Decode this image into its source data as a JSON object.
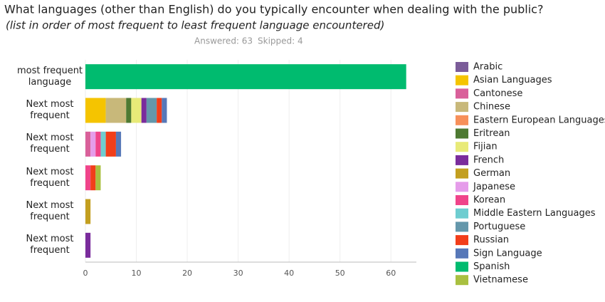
{
  "chart_data": {
    "type": "stacked_bar_horizontal",
    "title": "What languages (other than English) do you typically encounter when dealing with the public?",
    "subtitle": "(list in order of most frequent to least frequent language encountered)",
    "answered": "Answered: 63",
    "skipped": "Skipped: 4",
    "categories": [
      "most frequent language",
      "Next most frequent",
      "Next most frequent",
      "Next most frequent",
      "Next most frequent",
      "Next most frequent"
    ],
    "series": [
      {
        "name": "Arabic",
        "color": "#7b5c99",
        "values": [
          0,
          0,
          0,
          0,
          0,
          0
        ]
      },
      {
        "name": "Asian Languages",
        "color": "#f5c400",
        "values": [
          0,
          4,
          0,
          0,
          0,
          0
        ]
      },
      {
        "name": "Cantonese",
        "color": "#d9609a",
        "values": [
          0,
          0,
          1,
          0,
          0,
          0
        ]
      },
      {
        "name": "Chinese",
        "color": "#c8b87a",
        "values": [
          0,
          4,
          0,
          0,
          0,
          0
        ]
      },
      {
        "name": "Eastern European Languages",
        "color": "#f7905a",
        "values": [
          0,
          0,
          0,
          0,
          0,
          0
        ]
      },
      {
        "name": "Eritrean",
        "color": "#4e7a32",
        "values": [
          0,
          1,
          0,
          0,
          0,
          0
        ]
      },
      {
        "name": "Fijian",
        "color": "#e8ea78",
        "values": [
          0,
          2,
          0,
          0,
          0,
          0
        ]
      },
      {
        "name": "French",
        "color": "#7a2c9c",
        "values": [
          0,
          1,
          0,
          0,
          0,
          1
        ]
      },
      {
        "name": "German",
        "color": "#c39f20",
        "values": [
          0,
          0,
          0,
          0,
          1,
          0
        ]
      },
      {
        "name": "Japanese",
        "color": "#e59cea",
        "values": [
          0,
          0,
          1,
          0,
          0,
          0
        ]
      },
      {
        "name": "Korean",
        "color": "#f0448a",
        "values": [
          0,
          0,
          1,
          1,
          0,
          0
        ]
      },
      {
        "name": "Middle Eastern Languages",
        "color": "#6ecdd0",
        "values": [
          0,
          0,
          1,
          0,
          0,
          0
        ]
      },
      {
        "name": "Portuguese",
        "color": "#6497ab",
        "values": [
          0,
          2,
          0,
          0,
          0,
          0
        ]
      },
      {
        "name": "Russian",
        "color": "#f23e1a",
        "values": [
          0,
          1,
          2,
          1,
          0,
          0
        ]
      },
      {
        "name": "Sign Language",
        "color": "#5778b8",
        "values": [
          0,
          1,
          1,
          0,
          0,
          0
        ]
      },
      {
        "name": "Spanish",
        "color": "#00bb6f",
        "values": [
          63,
          0,
          0,
          0,
          0,
          0
        ]
      },
      {
        "name": "Vietnamese",
        "color": "#a9c040",
        "values": [
          0,
          0,
          0,
          1,
          0,
          0
        ]
      }
    ],
    "xlim": [
      0,
      65
    ],
    "xticks": [
      0,
      10,
      20,
      30,
      40,
      50,
      60
    ],
    "grid": true
  }
}
